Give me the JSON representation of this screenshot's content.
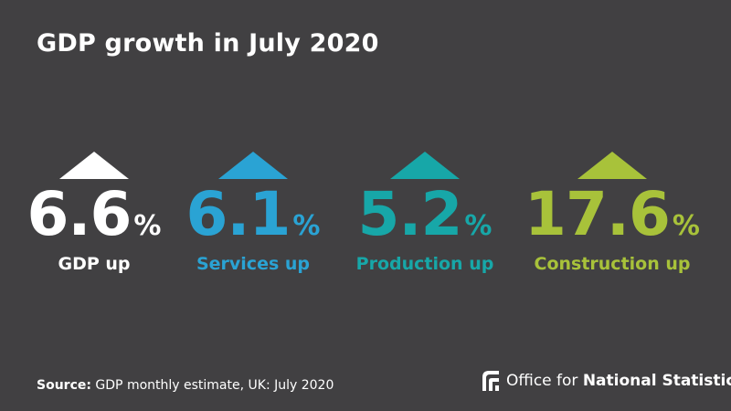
{
  "title": "GDP growth in July 2020",
  "chart_data": {
    "type": "table",
    "title": "GDP growth in July 2020",
    "items": [
      {
        "value": "6.6",
        "unit": "%",
        "label": "GDP up",
        "color": "#ffffff"
      },
      {
        "value": "6.1",
        "unit": "%",
        "label": "Services up",
        "color": "#2aa3d4"
      },
      {
        "value": "5.2",
        "unit": "%",
        "label": "Production up",
        "color": "#17a7a8"
      },
      {
        "value": "17.6",
        "unit": "%",
        "label": "Construction up",
        "color": "#a8c23a"
      }
    ]
  },
  "footer": {
    "source_lead": "Source:",
    "source_text": " GDP monthly estimate, UK: July 2020",
    "logo_regular": "Office for ",
    "logo_bold": "National Statistics"
  },
  "colors": {
    "background": "#414042"
  }
}
